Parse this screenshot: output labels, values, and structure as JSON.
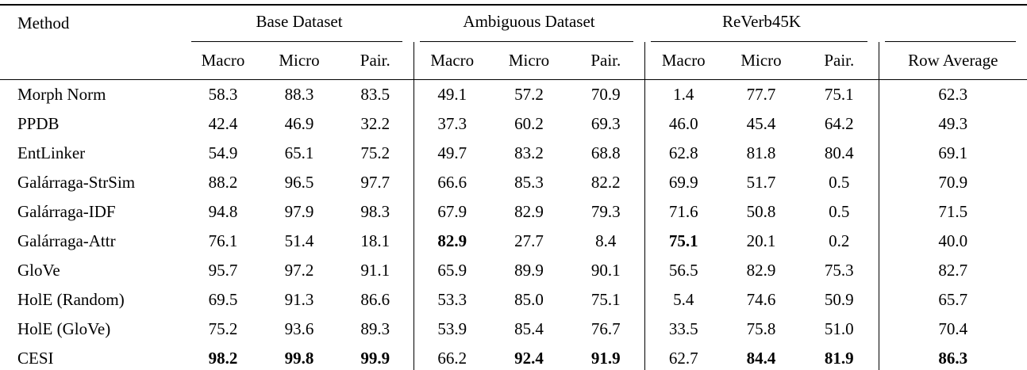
{
  "table": {
    "columns": {
      "method_header": "Method",
      "groups": [
        {
          "label": "Base Dataset",
          "subcolumns": [
            "Macro",
            "Micro",
            "Pair."
          ]
        },
        {
          "label": "Ambiguous Dataset",
          "subcolumns": [
            "Macro",
            "Micro",
            "Pair."
          ]
        },
        {
          "label": "ReVerb45K",
          "subcolumns": [
            "Macro",
            "Micro",
            "Pair."
          ]
        }
      ],
      "row_average_header": "Row Average"
    },
    "rows": [
      {
        "method": "Morph Norm",
        "values": [
          "58.3",
          "88.3",
          "83.5",
          "49.1",
          "57.2",
          "70.9",
          "1.4",
          "77.7",
          "75.1",
          "62.3"
        ],
        "bold": []
      },
      {
        "method": "PPDB",
        "values": [
          "42.4",
          "46.9",
          "32.2",
          "37.3",
          "60.2",
          "69.3",
          "46.0",
          "45.4",
          "64.2",
          "49.3"
        ],
        "bold": []
      },
      {
        "method": "EntLinker",
        "values": [
          "54.9",
          "65.1",
          "75.2",
          "49.7",
          "83.2",
          "68.8",
          "62.8",
          "81.8",
          "80.4",
          "69.1"
        ],
        "bold": []
      },
      {
        "method": "Galárraga-StrSim",
        "values": [
          "88.2",
          "96.5",
          "97.7",
          "66.6",
          "85.3",
          "82.2",
          "69.9",
          "51.7",
          "0.5",
          "70.9"
        ],
        "bold": []
      },
      {
        "method": "Galárraga-IDF",
        "values": [
          "94.8",
          "97.9",
          "98.3",
          "67.9",
          "82.9",
          "79.3",
          "71.6",
          "50.8",
          "0.5",
          "71.5"
        ],
        "bold": []
      },
      {
        "method": "Galárraga-Attr",
        "values": [
          "76.1",
          "51.4",
          "18.1",
          "82.9",
          "27.7",
          "8.4",
          "75.1",
          "20.1",
          "0.2",
          "40.0"
        ],
        "bold": [
          3,
          6
        ]
      },
      {
        "method": "GloVe",
        "values": [
          "95.7",
          "97.2",
          "91.1",
          "65.9",
          "89.9",
          "90.1",
          "56.5",
          "82.9",
          "75.3",
          "82.7"
        ],
        "bold": []
      },
      {
        "method": "HolE (Random)",
        "values": [
          "69.5",
          "91.3",
          "86.6",
          "53.3",
          "85.0",
          "75.1",
          "5.4",
          "74.6",
          "50.9",
          "65.7"
        ],
        "bold": []
      },
      {
        "method": "HolE (GloVe)",
        "values": [
          "75.2",
          "93.6",
          "89.3",
          "53.9",
          "85.4",
          "76.7",
          "33.5",
          "75.8",
          "51.0",
          "70.4"
        ],
        "bold": []
      },
      {
        "method": "CESI",
        "values": [
          "98.2",
          "99.8",
          "99.9",
          "66.2",
          "92.4",
          "91.9",
          "62.7",
          "84.4",
          "81.9",
          "86.3"
        ],
        "bold": [
          0,
          1,
          2,
          4,
          5,
          7,
          8,
          9
        ]
      }
    ]
  }
}
